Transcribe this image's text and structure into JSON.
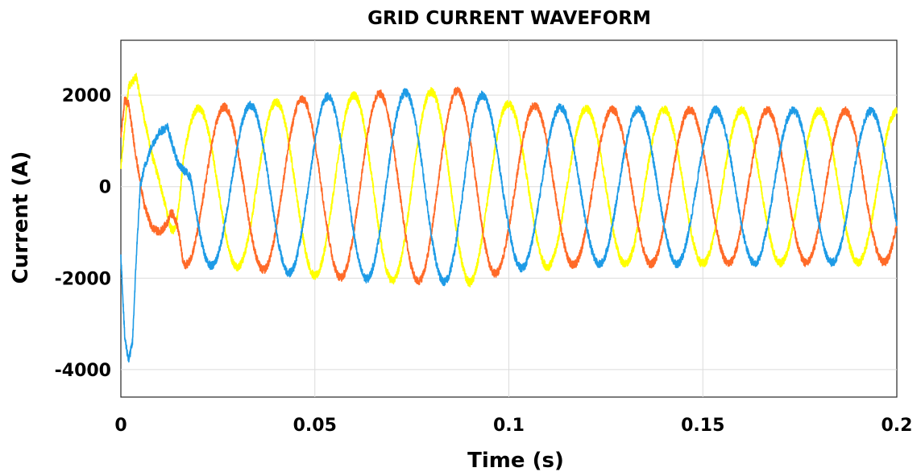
{
  "chart_data": {
    "type": "line",
    "title": "GRID CURRENT WAVEFORM",
    "xlabel": "Time (s)",
    "ylabel": "Current (A)",
    "xlim": [
      0,
      0.2
    ],
    "ylim": [
      -4600,
      3200
    ],
    "grid": true,
    "x_ticks": [
      0,
      0.05,
      0.1,
      0.15,
      0.2
    ],
    "x_tick_labels": [
      "0",
      "0.05",
      "0.1",
      "0.15",
      "0.2"
    ],
    "y_ticks": [
      -4000,
      -2000,
      0,
      2000
    ],
    "y_tick_labels": [
      "-4000",
      "-2000",
      "0",
      "2000"
    ],
    "frequency_hz": 50,
    "series": [
      {
        "color": "#ffff00",
        "phase_deg": 90,
        "points": [
          [
            0,
            400
          ],
          [
            0.002,
            2200
          ],
          [
            0.004,
            2400
          ],
          [
            0.006,
            1500
          ],
          [
            0.008,
            700
          ],
          [
            0.01,
            100
          ],
          [
            0.012,
            -600
          ],
          [
            0.014,
            -1200
          ],
          [
            0.016,
            -1600
          ]
        ],
        "amplitude_envelope": [
          [
            0.015,
            1700
          ],
          [
            0.03,
            1750
          ],
          [
            0.05,
            1950
          ],
          [
            0.07,
            2050
          ],
          [
            0.09,
            2100
          ],
          [
            0.1,
            1800
          ],
          [
            0.12,
            1700
          ],
          [
            0.2,
            1650
          ]
        ]
      },
      {
        "color": "#ff6a28",
        "phase_deg": -30,
        "points": [
          [
            0,
            1100
          ],
          [
            0.001,
            1900
          ],
          [
            0.002,
            1800
          ],
          [
            0.004,
            600
          ],
          [
            0.006,
            -400
          ],
          [
            0.008,
            -900
          ],
          [
            0.01,
            -1000
          ],
          [
            0.012,
            -800
          ],
          [
            0.014,
            -300
          ],
          [
            0.016,
            700
          ]
        ],
        "amplitude_envelope": [
          [
            0.015,
            1700
          ],
          [
            0.03,
            1750
          ],
          [
            0.05,
            1950
          ],
          [
            0.07,
            2050
          ],
          [
            0.09,
            2100
          ],
          [
            0.1,
            1800
          ],
          [
            0.12,
            1700
          ],
          [
            0.2,
            1650
          ]
        ]
      },
      {
        "color": "#1e9be6",
        "phase_deg": 210,
        "points": [
          [
            0,
            -1500
          ],
          [
            0.001,
            -3300
          ],
          [
            0.002,
            -3800
          ],
          [
            0.003,
            -3400
          ],
          [
            0.004,
            -1500
          ],
          [
            0.005,
            0
          ],
          [
            0.006,
            400
          ],
          [
            0.008,
            900
          ],
          [
            0.01,
            1200
          ],
          [
            0.012,
            1300
          ],
          [
            0.014,
            700
          ],
          [
            0.016,
            -400
          ],
          [
            0.018,
            -1400
          ]
        ],
        "amplitude_envelope": [
          [
            0.015,
            1700
          ],
          [
            0.03,
            1750
          ],
          [
            0.05,
            1950
          ],
          [
            0.07,
            2050
          ],
          [
            0.09,
            2100
          ],
          [
            0.1,
            1800
          ],
          [
            0.12,
            1700
          ],
          [
            0.2,
            1650
          ]
        ]
      }
    ]
  }
}
